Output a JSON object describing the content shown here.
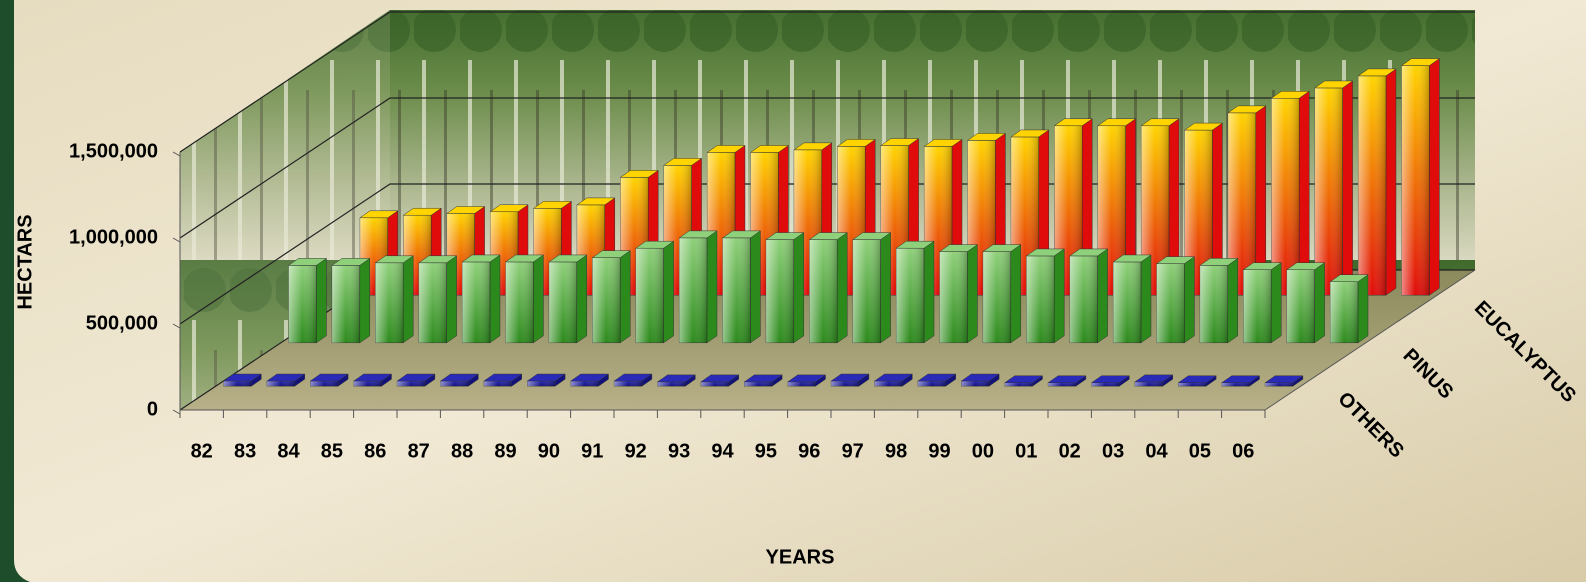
{
  "chart_data": {
    "type": "bar3d",
    "x_label": "YEARS",
    "y_label": "HECTARS",
    "categories": [
      "82",
      "83",
      "84",
      "85",
      "86",
      "87",
      "88",
      "89",
      "90",
      "91",
      "92",
      "93",
      "94",
      "95",
      "96",
      "97",
      "98",
      "99",
      "00",
      "01",
      "02",
      "03",
      "04",
      "05",
      "06"
    ],
    "series": [
      {
        "name": "OTHERS",
        "color": "#2a2ab8",
        "values": [
          30000,
          30000,
          30000,
          30000,
          30000,
          30000,
          30000,
          30000,
          30000,
          30000,
          25000,
          25000,
          25000,
          25000,
          30000,
          30000,
          30000,
          30000,
          20000,
          20000,
          20000,
          25000,
          20000,
          20000,
          20000
        ]
      },
      {
        "name": "PINUS",
        "color": "#8fd07a",
        "values": [
          450000,
          450000,
          465000,
          465000,
          470000,
          470000,
          470000,
          495000,
          550000,
          610000,
          610000,
          600000,
          600000,
          600000,
          550000,
          530000,
          530000,
          505000,
          505000,
          470000,
          460000,
          450000,
          425000,
          425000,
          355000
        ]
      },
      {
        "name": "EUCALYPTUS",
        "color": "#ffd400",
        "values": [
          450000,
          465000,
          475000,
          485000,
          505000,
          525000,
          685000,
          755000,
          830000,
          830000,
          845000,
          865000,
          870000,
          865000,
          900000,
          920000,
          985000,
          985000,
          985000,
          960000,
          1060000,
          1145000,
          1205000,
          1275000,
          1335000
        ]
      }
    ],
    "ylim": [
      0,
      1500000
    ],
    "yticks": [
      0,
      {
        "value": 500000,
        "label": "500,000"
      },
      {
        "value": 1000000,
        "label": "1,000,000"
      },
      {
        "value": 1500000,
        "label": "1,500,000"
      }
    ],
    "grid": true
  }
}
